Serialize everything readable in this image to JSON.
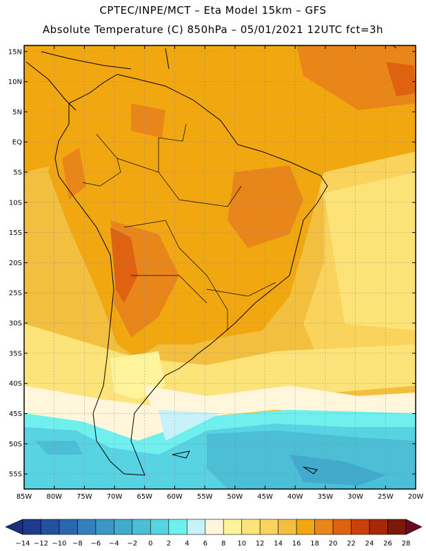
{
  "header": {
    "line1": "CPTEC/INPE/MCT –   Eta Model 15km – GFS",
    "line2": "Absolute Temperature (C) 850hPa – 05/01/2021 12UTC fct=3h"
  },
  "map": {
    "lat_labels": [
      "15N",
      "10N",
      "5N",
      "EQ",
      "5S",
      "10S",
      "15S",
      "20S",
      "25S",
      "30S",
      "35S",
      "40S",
      "45S",
      "50S",
      "55S"
    ],
    "lon_labels": [
      "85W",
      "80W",
      "75W",
      "70W",
      "65W",
      "60W",
      "55W",
      "50W",
      "45W",
      "40W",
      "35W",
      "30W",
      "25W",
      "20W"
    ],
    "lon_range": [
      -85,
      -20
    ],
    "lat_range": [
      -57.5,
      16
    ]
  },
  "colorbar": {
    "ticks": [
      "-14",
      "-12",
      "-10",
      "-8",
      "-6",
      "-4",
      "-2",
      "0",
      "2",
      "4",
      "6",
      "8",
      "10",
      "12",
      "14",
      "16",
      "18",
      "20",
      "22",
      "24",
      "26",
      "28"
    ],
    "colors": [
      "#1d3a8c",
      "#23509f",
      "#2b66b0",
      "#3480bd",
      "#3b97c6",
      "#42aacd",
      "#4cbfd6",
      "#58d3e2",
      "#6ff0ee",
      "#c8f2fa",
      "#fff6dc",
      "#fff39b",
      "#fde47a",
      "#f9d35c",
      "#f3bf3f",
      "#f1a70f",
      "#e9861a",
      "#df6210",
      "#c8400c",
      "#a82709",
      "#7c1a08"
    ]
  }
}
